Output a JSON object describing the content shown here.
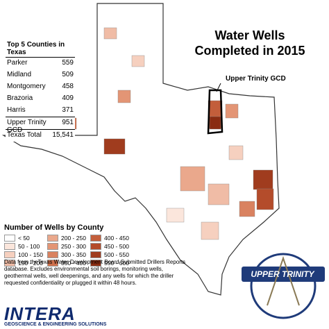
{
  "title": "Water Wells Completed in 2015",
  "table": {
    "title": "Top 5 Counties in Texas",
    "rows": [
      [
        "Parker",
        "559"
      ],
      [
        "Midland",
        "509"
      ],
      [
        "Montgomery",
        "458"
      ],
      [
        "Brazoria",
        "409"
      ],
      [
        "Harris",
        "371"
      ],
      [
        "Upper Trinity GCD",
        "951"
      ],
      [
        "Texas Total",
        "15,541"
      ]
    ]
  },
  "callout": "Upper Trinity GCD",
  "legend": {
    "title": "Number of Wells by County",
    "items": [
      {
        "label": "< 50",
        "color": "#ffffff"
      },
      {
        "label": "50 - 100",
        "color": "#fbe6dc"
      },
      {
        "label": "100 - 150",
        "color": "#f6d0bf"
      },
      {
        "label": "150 - 200",
        "color": "#f0bca6"
      },
      {
        "label": "200 - 250",
        "color": "#eaa88c"
      },
      {
        "label": "250 - 300",
        "color": "#e39575"
      },
      {
        "label": "300 - 350",
        "color": "#d98260"
      },
      {
        "label": "350 - 400",
        "color": "#cf704c"
      },
      {
        "label": "400 - 450",
        "color": "#c35e3b"
      },
      {
        "label": "450 - 500",
        "color": "#b44c2b"
      },
      {
        "label": "500 - 550",
        "color": "#a03c1e"
      },
      {
        "label": "550 - 600",
        "color": "#8a2c12"
      }
    ]
  },
  "note": "Data from theTexas Water Development Board Submitted Drillers Reports database. Excludes environmental soil borings, monitoring wells, geothermal wells, well deepenings, and any wells for which the driller requested confidentiality or plugged it within 48 hours.",
  "logo": {
    "name": "INTERA",
    "tagline": "GEOSCIENCE & ENGINEERING SOLUTIONS"
  },
  "badge": "UPPER TRINITY"
}
